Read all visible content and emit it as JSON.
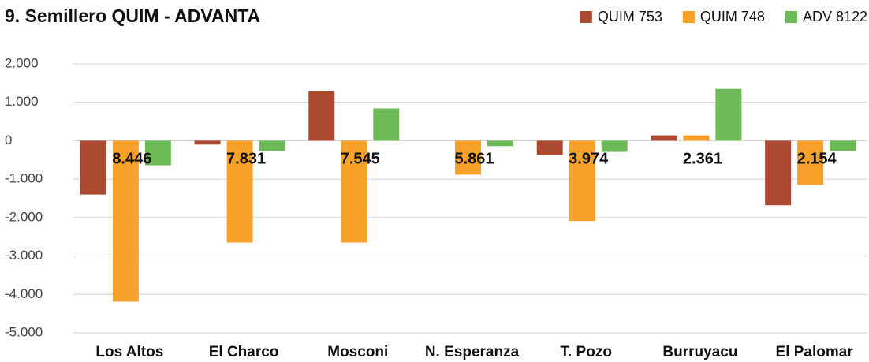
{
  "chart_data": {
    "type": "bar",
    "title": "9. Semillero QUIM - ADVANTA",
    "categories": [
      "Los Altos",
      "El Charco",
      "Mosconi",
      "N. Esperanza",
      "T. Pozo",
      "Burruyacu",
      "El Palomar"
    ],
    "series": [
      {
        "name": "QUIM 753",
        "color": "#ab4a30",
        "values": [
          -1400,
          -100,
          1290,
          0,
          -370,
          140,
          -1680
        ]
      },
      {
        "name": "QUIM 748",
        "color": "#f7a02a",
        "values": [
          -4190,
          -2650,
          -2650,
          -880,
          -2090,
          140,
          -1150
        ]
      },
      {
        "name": "ADV 8122",
        "color": "#6dbb56",
        "values": [
          -640,
          -270,
          840,
          -140,
          -290,
          1350,
          -270
        ]
      }
    ],
    "annotations": [
      "8.446",
      "7.831",
      "7.545",
      "5.861",
      "3.974",
      "2.361",
      "2.154"
    ],
    "ylim": [
      -5000,
      2000
    ],
    "yticks": [
      {
        "value": -5000,
        "label": "-5.000"
      },
      {
        "value": -4000,
        "label": "-4.000"
      },
      {
        "value": -3000,
        "label": "-3.000"
      },
      {
        "value": -2000,
        "label": "-2.000"
      },
      {
        "value": -1000,
        "label": "-1.000"
      },
      0,
      {
        "value": 1000,
        "label": "1.000"
      },
      {
        "value": 2000,
        "label": "2.000"
      }
    ],
    "grid": true,
    "legend": "top-right"
  }
}
